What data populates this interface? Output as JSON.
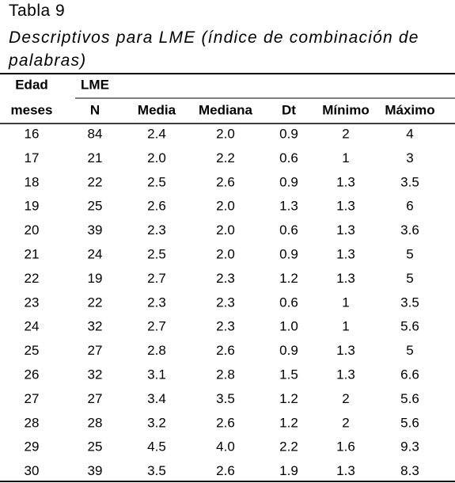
{
  "header": {
    "label": "Tabla 9",
    "title": "Descriptivos para LME (índice de combinación de palabras)"
  },
  "table": {
    "group_header": [
      "Edad",
      "LME"
    ],
    "columns": [
      "meses",
      "N",
      "Media",
      "Mediana",
      "Dt",
      "Mínimo",
      "Máximo"
    ],
    "rows": [
      [
        "16",
        "84",
        "2.4",
        "2.0",
        "0.9",
        "2",
        "4"
      ],
      [
        "17",
        "21",
        "2.0",
        "2.2",
        "0.6",
        "1",
        "3"
      ],
      [
        "18",
        "22",
        "2.5",
        "2.6",
        "0.9",
        "1.3",
        "3.5"
      ],
      [
        "19",
        "25",
        "2.6",
        "2.0",
        "1.3",
        "1.3",
        "6"
      ],
      [
        "20",
        "39",
        "2.3",
        "2.0",
        "0.6",
        "1.3",
        "3.6"
      ],
      [
        "21",
        "24",
        "2.5",
        "2.0",
        "0.9",
        "1.3",
        "5"
      ],
      [
        "22",
        "19",
        "2.7",
        "2.3",
        "1.2",
        "1.3",
        "5"
      ],
      [
        "23",
        "22",
        "2.3",
        "2.3",
        "0.6",
        "1",
        "3.5"
      ],
      [
        "24",
        "32",
        "2.7",
        "2.3",
        "1.0",
        "1",
        "5.6"
      ],
      [
        "25",
        "27",
        "2.8",
        "2.6",
        "0.9",
        "1.3",
        "5"
      ],
      [
        "26",
        "32",
        "3.1",
        "2.8",
        "1.5",
        "1.3",
        "6.6"
      ],
      [
        "27",
        "27",
        "3.4",
        "3.5",
        "1.2",
        "2",
        "5.6"
      ],
      [
        "28",
        "28",
        "3.2",
        "2.6",
        "1.2",
        "2",
        "5.6"
      ],
      [
        "29",
        "25",
        "4.5",
        "4.0",
        "2.2",
        "1.6",
        "9.3"
      ],
      [
        "30",
        "39",
        "3.5",
        "2.6",
        "1.9",
        "1.3",
        "8.3"
      ]
    ]
  }
}
